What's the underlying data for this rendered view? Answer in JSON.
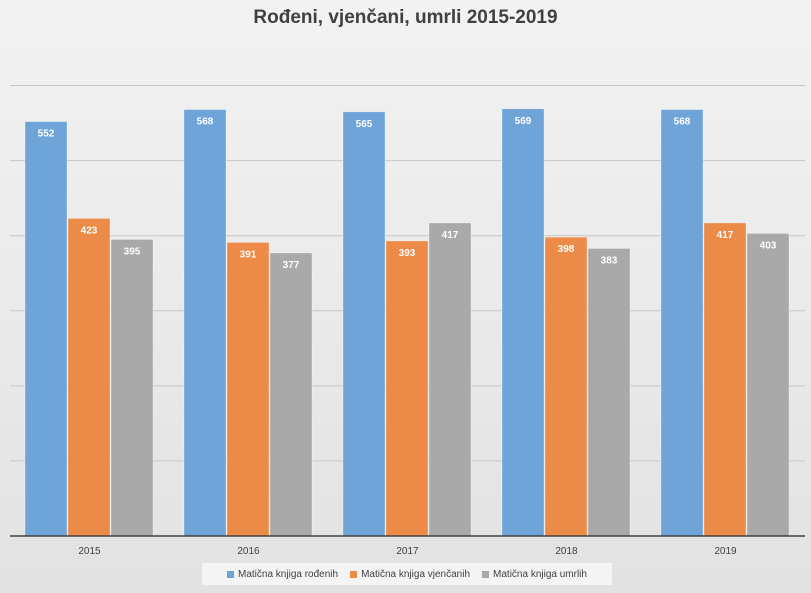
{
  "chart_data": {
    "type": "bar",
    "title": "Rođeni, vjenčani, umrli 2015-2019",
    "categories": [
      "2015",
      "2016",
      "2017",
      "2018",
      "2019"
    ],
    "series": [
      {
        "name": "Matična knjiga rođenih",
        "values": [
          552,
          568,
          565,
          569,
          568
        ],
        "color": "#6fa4d8"
      },
      {
        "name": "Matična knjiga vjenčanih",
        "values": [
          423,
          391,
          393,
          398,
          417
        ],
        "color": "#ec8a48"
      },
      {
        "name": "Matična knjiga umrlih",
        "values": [
          395,
          377,
          417,
          383,
          403
        ],
        "color": "#a9a9a9"
      }
    ],
    "xlabel": "",
    "ylabel": "",
    "ylim": [
      0,
      650
    ],
    "gridlines": true,
    "legend_position": "bottom",
    "data_labels": true
  }
}
